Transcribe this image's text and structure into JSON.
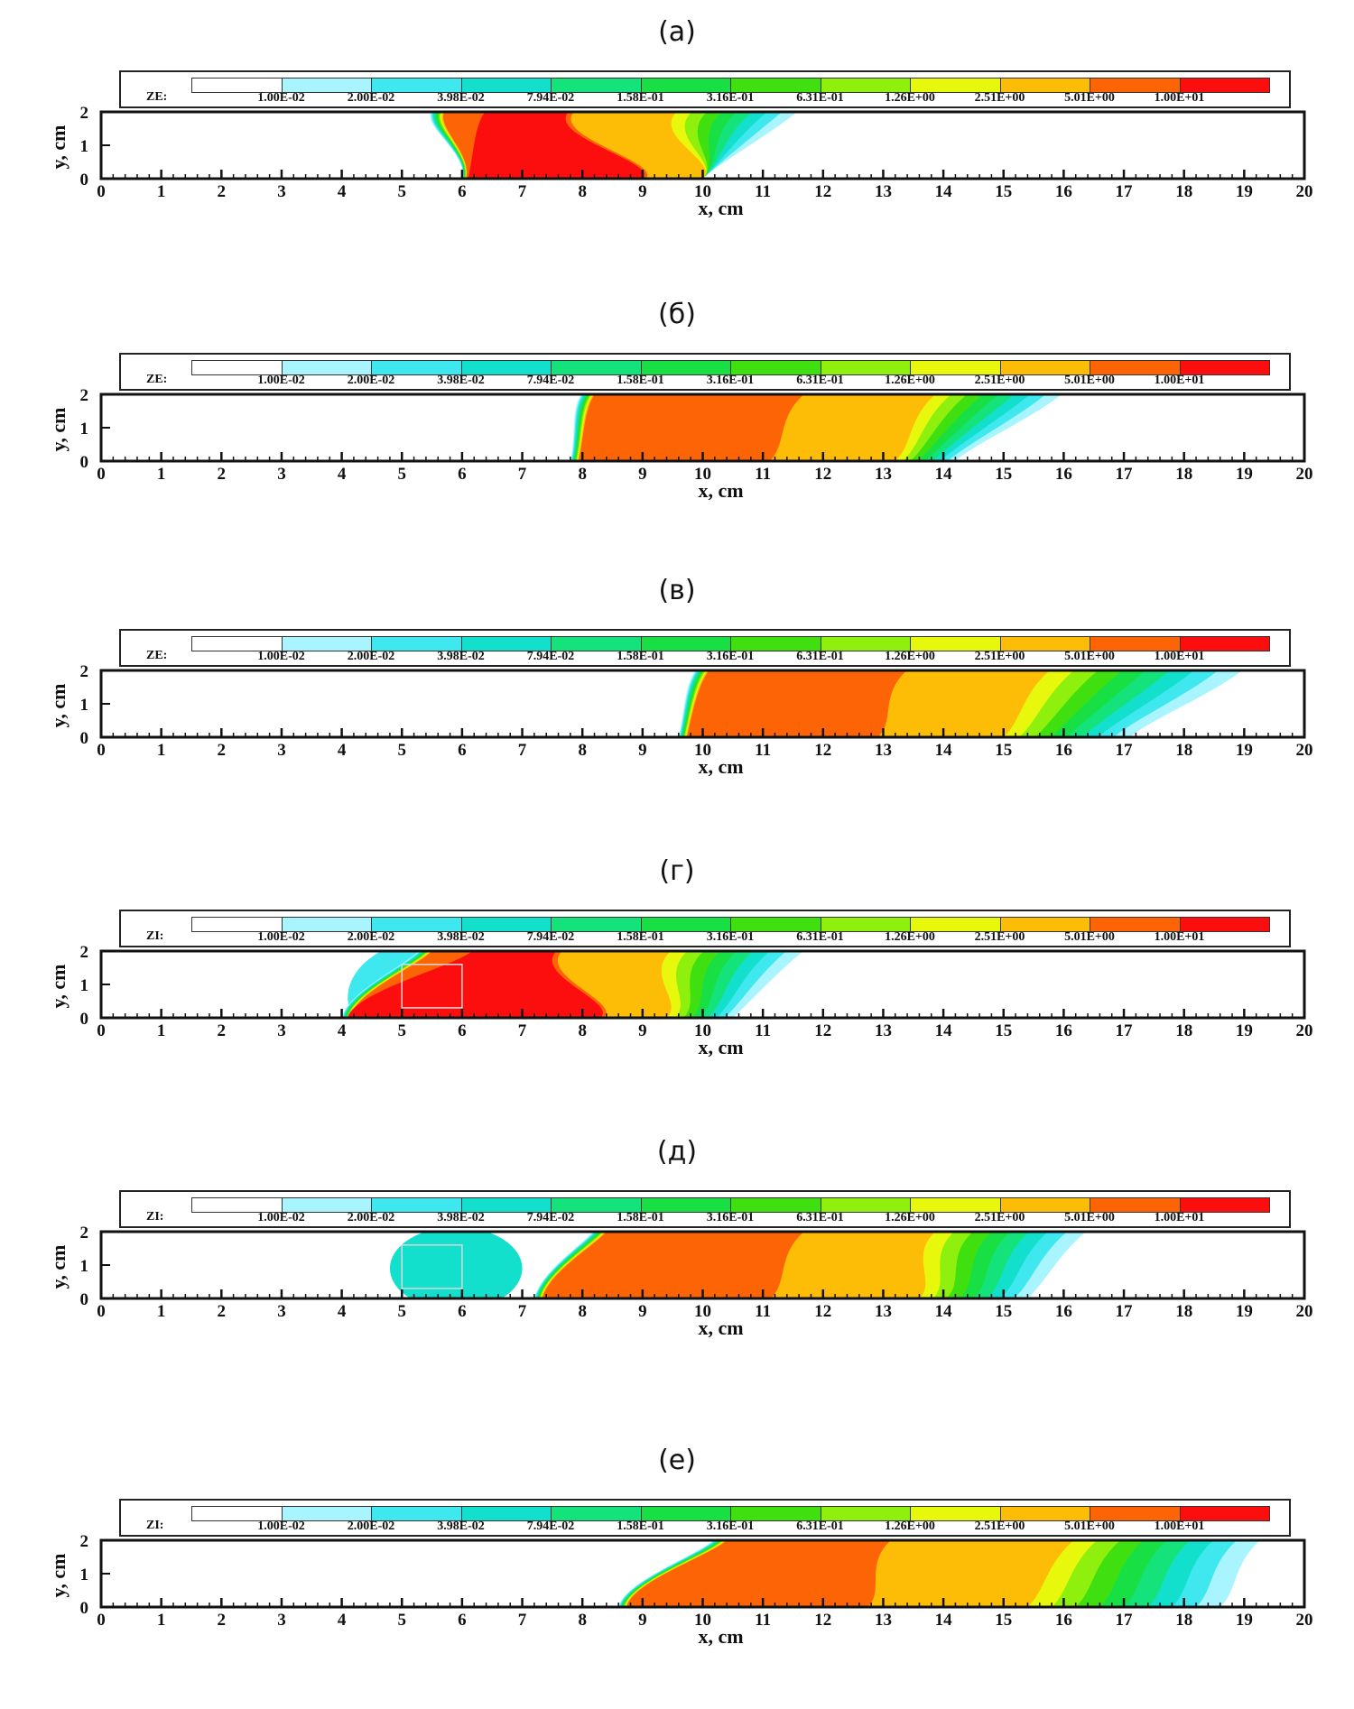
{
  "chart_data": [
    {
      "type": "contour",
      "panel_label": "(а)",
      "legend_prefix": "ZE:",
      "legend_levels": [
        "1.00E-02",
        "2.00E-02",
        "3.98E-02",
        "7.94E-02",
        "1.58E-01",
        "3.16E-01",
        "6.31E-01",
        "1.26E+00",
        "2.51E+00",
        "5.01E+00",
        "1.00E+01"
      ],
      "xlabel": "x, cm",
      "ylabel": "y, cm",
      "xlim": [
        0,
        20
      ],
      "ylim": [
        0,
        2
      ],
      "xticks": [
        0,
        1,
        2,
        3,
        4,
        5,
        6,
        7,
        8,
        9,
        10,
        11,
        12,
        13,
        14,
        15,
        16,
        17,
        18,
        19,
        20
      ],
      "yticks": [
        0,
        1,
        2
      ],
      "front": {
        "bottom_start": 6.0,
        "top_start": 5.5,
        "bottom_end": 10.0,
        "top_end": 11.6,
        "red_end_top": 7.8,
        "red_end_bottom": 9.0,
        "orange_end_top": 9.6,
        "orange_end_bottom": 10.0
      },
      "box": null
    },
    {
      "type": "contour",
      "panel_label": "(б)",
      "legend_prefix": "ZE:",
      "legend_levels": [
        "1.00E-02",
        "2.00E-02",
        "3.98E-02",
        "7.94E-02",
        "1.58E-01",
        "3.16E-01",
        "6.31E-01",
        "1.26E+00",
        "2.51E+00",
        "5.01E+00",
        "1.00E+01"
      ],
      "xlabel": "x, cm",
      "ylabel": "y, cm",
      "xlim": [
        0,
        20
      ],
      "ylim": [
        0,
        2
      ],
      "xticks": [
        0,
        1,
        2,
        3,
        4,
        5,
        6,
        7,
        8,
        9,
        10,
        11,
        12,
        13,
        14,
        15,
        16,
        17,
        18,
        19,
        20
      ],
      "yticks": [
        0,
        1,
        2
      ],
      "front": {
        "bottom_start": 7.8,
        "top_start": 8.0,
        "bottom_end": 14.2,
        "top_end": 16.0,
        "red_end_top": 11.6,
        "red_end_bottom": 11.0,
        "orange_end_top": 13.9,
        "orange_end_bottom": 13.2
      },
      "box": null
    },
    {
      "type": "contour",
      "panel_label": "(в)",
      "legend_prefix": "ZE:",
      "legend_levels": [
        "1.00E-02",
        "2.00E-02",
        "3.98E-02",
        "7.94E-02",
        "1.58E-01",
        "3.16E-01",
        "6.31E-01",
        "1.26E+00",
        "2.51E+00",
        "5.01E+00",
        "1.00E+01"
      ],
      "xlabel": "x, cm",
      "ylabel": "y, cm",
      "xlim": [
        0,
        20
      ],
      "ylim": [
        0,
        2
      ],
      "xticks": [
        0,
        1,
        2,
        3,
        4,
        5,
        6,
        7,
        8,
        9,
        10,
        11,
        12,
        13,
        14,
        15,
        16,
        17,
        18,
        19,
        20
      ],
      "yticks": [
        0,
        1,
        2
      ],
      "front": {
        "bottom_start": 9.6,
        "top_start": 9.9,
        "bottom_end": 17.1,
        "top_end": 19.0,
        "red_end_top": 13.3,
        "red_end_bottom": 12.8,
        "orange_end_top": 15.8,
        "orange_end_bottom": 15.0
      },
      "box": null
    },
    {
      "type": "contour",
      "panel_label": "(г)",
      "legend_prefix": "ZI:",
      "legend_levels": [
        "1.00E-02",
        "2.00E-02",
        "3.98E-02",
        "7.94E-02",
        "1.58E-01",
        "3.16E-01",
        "6.31E-01",
        "1.26E+00",
        "2.51E+00",
        "5.01E+00",
        "1.00E+01"
      ],
      "xlabel": "x, cm",
      "ylabel": "y, cm",
      "xlim": [
        0,
        20
      ],
      "ylim": [
        0,
        2
      ],
      "xticks": [
        0,
        1,
        2,
        3,
        4,
        5,
        6,
        7,
        8,
        9,
        10,
        11,
        12,
        13,
        14,
        15,
        16,
        17,
        18,
        19,
        20
      ],
      "yticks": [
        0,
        1,
        2
      ],
      "front": {
        "bottom_start": 4.0,
        "top_start": 5.3,
        "bottom_end": 10.5,
        "top_end": 11.7,
        "red_end_top": 7.6,
        "red_end_bottom": 8.3,
        "orange_end_top": 9.5,
        "orange_end_bottom": 9.4
      },
      "box": {
        "x0": 5.0,
        "x1": 6.0,
        "y0": 0.3,
        "y1": 1.6
      }
    },
    {
      "type": "contour",
      "panel_label": "(д)",
      "legend_prefix": "ZI:",
      "legend_levels": [
        "1.00E-02",
        "2.00E-02",
        "3.98E-02",
        "7.94E-02",
        "1.58E-01",
        "3.16E-01",
        "6.31E-01",
        "1.26E+00",
        "2.51E+00",
        "5.01E+00",
        "1.00E+01"
      ],
      "xlabel": "x, cm",
      "ylabel": "y, cm",
      "xlim": [
        0,
        20
      ],
      "ylim": [
        0,
        2
      ],
      "xticks": [
        0,
        1,
        2,
        3,
        4,
        5,
        6,
        7,
        8,
        9,
        10,
        11,
        12,
        13,
        14,
        15,
        16,
        17,
        18,
        19,
        20
      ],
      "yticks": [
        0,
        1,
        2
      ],
      "front": {
        "bottom_start": 7.2,
        "top_start": 8.2,
        "bottom_end": 15.4,
        "top_end": 16.4,
        "red_end_top": 11.6,
        "red_end_bottom": 11.0,
        "orange_end_top": 13.9,
        "orange_end_bottom": 13.6
      },
      "box": {
        "x0": 5.0,
        "x1": 6.0,
        "y0": 0.3,
        "y1": 1.6
      }
    },
    {
      "type": "contour",
      "panel_label": "(е)",
      "legend_prefix": "ZI:",
      "legend_levels": [
        "1.00E-02",
        "2.00E-02",
        "3.98E-02",
        "7.94E-02",
        "1.58E-01",
        "3.16E-01",
        "6.31E-01",
        "1.26E+00",
        "2.51E+00",
        "5.01E+00",
        "1.00E+01"
      ],
      "xlabel": "x, cm",
      "ylabel": "y, cm",
      "xlim": [
        0,
        20
      ],
      "ylim": [
        0,
        2
      ],
      "xticks": [
        0,
        1,
        2,
        3,
        4,
        5,
        6,
        7,
        8,
        9,
        10,
        11,
        12,
        13,
        14,
        15,
        16,
        17,
        18,
        19,
        20
      ],
      "yticks": [
        0,
        1,
        2
      ],
      "front": {
        "bottom_start": 8.6,
        "top_start": 10.2,
        "bottom_end": 18.6,
        "top_end": 19.3,
        "red_end_top": 13.0,
        "red_end_bottom": 12.6,
        "orange_end_top": 16.2,
        "orange_end_bottom": 15.4
      },
      "box": null
    }
  ],
  "colors": {
    "levels": [
      "#ffffff",
      "#a8f4ff",
      "#3ee8ee",
      "#12e0cc",
      "#14e37c",
      "#18e044",
      "#40e010",
      "#8ef00c",
      "#e8f80c",
      "#fdbd06",
      "#fc6406",
      "#fc0e0e"
    ]
  }
}
